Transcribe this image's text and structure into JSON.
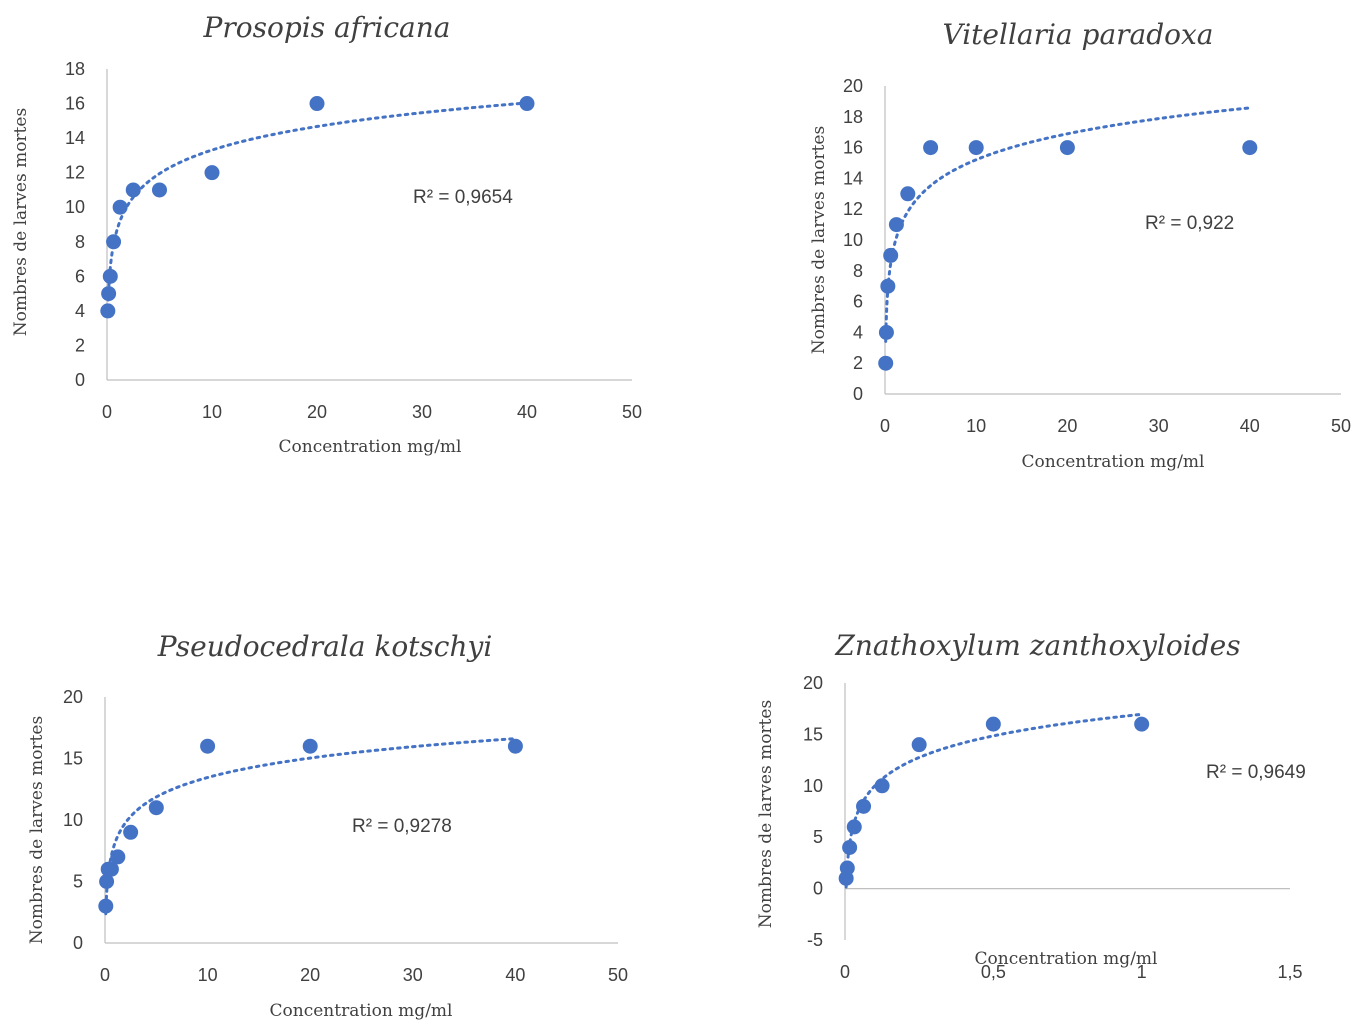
{
  "colors": {
    "marker": "#4472C4",
    "trend": "#4472C4"
  },
  "chart_data": [
    {
      "type": "scatter",
      "title": "Prosopis africana",
      "xlabel": "Concentration mg/ml",
      "ylabel": "Nombres de larves mortes",
      "xlim": [
        0,
        50
      ],
      "ylim": [
        0,
        18
      ],
      "xticks": [
        "0",
        "10",
        "20",
        "30",
        "40",
        "50"
      ],
      "yticks": [
        "0",
        "2",
        "4",
        "6",
        "8",
        "10",
        "12",
        "14",
        "16",
        "18"
      ],
      "x": [
        0.078,
        0.156,
        0.3125,
        0.625,
        1.25,
        2.5,
        5,
        10,
        20,
        40
      ],
      "y": [
        4,
        5,
        6,
        8,
        10,
        11,
        11,
        12,
        16,
        16
      ],
      "trendline": {
        "type": "logarithmic",
        "r2_label": "R² = 0,9654"
      },
      "grid": false
    },
    {
      "type": "scatter",
      "title": "Vitellaria paradoxa",
      "xlabel": "Concentration mg/ml",
      "ylabel": "Nombres de larves mortes",
      "xlim": [
        0,
        50
      ],
      "ylim": [
        0,
        20
      ],
      "xticks": [
        "0",
        "10",
        "20",
        "30",
        "40",
        "50"
      ],
      "yticks": [
        "0",
        "2",
        "4",
        "6",
        "8",
        "10",
        "12",
        "14",
        "16",
        "18",
        "20"
      ],
      "x": [
        0.078,
        0.156,
        0.3125,
        0.625,
        1.25,
        2.5,
        5,
        10,
        20,
        40
      ],
      "y": [
        2,
        4,
        7,
        9,
        11,
        13,
        16,
        16,
        16,
        16
      ],
      "trendline": {
        "type": "logarithmic",
        "r2_label": "R² = 0,922"
      },
      "grid": false
    },
    {
      "type": "scatter",
      "title": "Pseudocedrala kotschyi",
      "xlabel": "Concentration mg/ml",
      "ylabel": "Nombres de larves mortes",
      "xlim": [
        0,
        50
      ],
      "ylim": [
        0,
        20
      ],
      "xticks": [
        "0",
        "10",
        "20",
        "30",
        "40",
        "50"
      ],
      "yticks": [
        "0",
        "5",
        "10",
        "15",
        "20"
      ],
      "x": [
        0.078,
        0.156,
        0.3125,
        0.625,
        1.25,
        2.5,
        5,
        10,
        20,
        40
      ],
      "y": [
        3,
        5,
        6,
        6,
        7,
        9,
        11,
        16,
        16,
        16
      ],
      "trendline": {
        "type": "logarithmic",
        "r2_label": "R² = 0,9278"
      },
      "grid": false
    },
    {
      "type": "scatter",
      "title": "Znathoxylum zanthoxyloides",
      "xlabel": "Concentration mg/ml",
      "ylabel": "Nombres de larves mortes",
      "xlim": [
        0,
        1.5
      ],
      "ylim": [
        -5,
        20
      ],
      "xticks": [
        "0",
        "0,5",
        "1",
        "1,5"
      ],
      "yticks": [
        "-5",
        "0",
        "5",
        "10",
        "15",
        "20"
      ],
      "x": [
        0.0039,
        0.0078,
        0.0156,
        0.03125,
        0.0625,
        0.125,
        0.25,
        0.5,
        1
      ],
      "y": [
        1,
        2,
        4,
        6,
        8,
        10,
        14,
        16,
        16
      ],
      "trendline": {
        "type": "logarithmic",
        "r2_label": "R² = 0,9649"
      },
      "grid": false
    }
  ]
}
